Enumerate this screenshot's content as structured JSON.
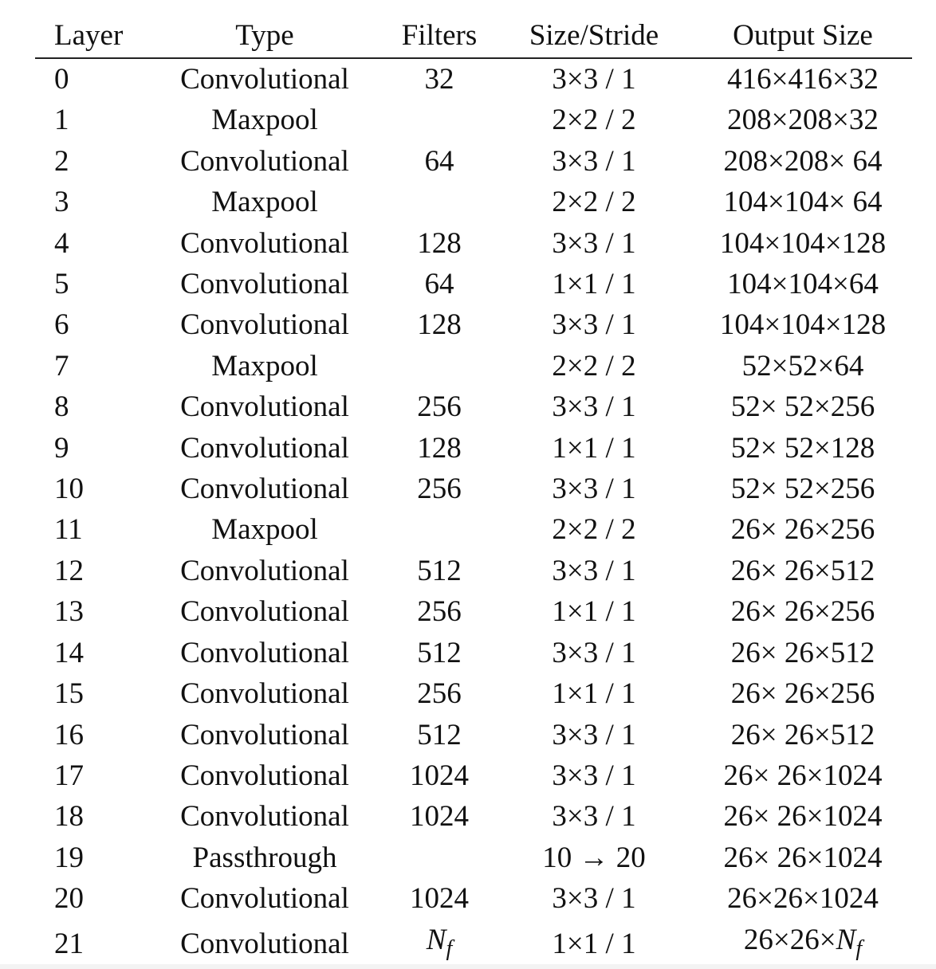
{
  "table": {
    "headers": {
      "layer": "Layer",
      "type": "Type",
      "filters": "Filters",
      "size_stride": "Size/Stride",
      "output_size": "Output Size"
    },
    "rows": [
      {
        "layer": "0",
        "type": "Convolutional",
        "filters": "32",
        "size_stride": "3×3 / 1",
        "output_size": "416×416×32"
      },
      {
        "layer": "1",
        "type": "Maxpool",
        "filters": "",
        "size_stride": "2×2 / 2",
        "output_size": "208×208×32"
      },
      {
        "layer": "2",
        "type": "Convolutional",
        "filters": "64",
        "size_stride": "3×3 / 1",
        "output_size": "208×208× 64"
      },
      {
        "layer": "3",
        "type": "Maxpool",
        "filters": "",
        "size_stride": "2×2 / 2",
        "output_size": "104×104× 64"
      },
      {
        "layer": "4",
        "type": "Convolutional",
        "filters": "128",
        "size_stride": "3×3 / 1",
        "output_size": "104×104×128"
      },
      {
        "layer": "5",
        "type": "Convolutional",
        "filters": "64",
        "size_stride": "1×1 / 1",
        "output_size": "104×104×64"
      },
      {
        "layer": "6",
        "type": "Convolutional",
        "filters": "128",
        "size_stride": "3×3 / 1",
        "output_size": "104×104×128"
      },
      {
        "layer": "7",
        "type": "Maxpool",
        "filters": "",
        "size_stride": "2×2 / 2",
        "output_size": "52×52×64"
      },
      {
        "layer": "8",
        "type": "Convolutional",
        "filters": "256",
        "size_stride": "3×3 / 1",
        "output_size": "52× 52×256"
      },
      {
        "layer": "9",
        "type": "Convolutional",
        "filters": "128",
        "size_stride": "1×1 / 1",
        "output_size": "52× 52×128"
      },
      {
        "layer": "10",
        "type": "Convolutional",
        "filters": "256",
        "size_stride": "3×3 / 1",
        "output_size": "52× 52×256"
      },
      {
        "layer": "11",
        "type": "Maxpool",
        "filters": "",
        "size_stride": "2×2 / 2",
        "output_size": "26× 26×256"
      },
      {
        "layer": "12",
        "type": "Convolutional",
        "filters": "512",
        "size_stride": "3×3 / 1",
        "output_size": "26× 26×512"
      },
      {
        "layer": "13",
        "type": "Convolutional",
        "filters": "256",
        "size_stride": "1×1 / 1",
        "output_size": "26× 26×256"
      },
      {
        "layer": "14",
        "type": "Convolutional",
        "filters": "512",
        "size_stride": "3×3 / 1",
        "output_size": "26× 26×512"
      },
      {
        "layer": "15",
        "type": "Convolutional",
        "filters": "256",
        "size_stride": "1×1 / 1",
        "output_size": "26× 26×256"
      },
      {
        "layer": "16",
        "type": "Convolutional",
        "filters": "512",
        "size_stride": "3×3 / 1",
        "output_size": "26× 26×512"
      },
      {
        "layer": "17",
        "type": "Convolutional",
        "filters": "1024",
        "size_stride": "3×3 / 1",
        "output_size": "26× 26×1024"
      },
      {
        "layer": "18",
        "type": "Convolutional",
        "filters": "1024",
        "size_stride": "3×3 / 1",
        "output_size": "26× 26×1024"
      },
      {
        "layer": "19",
        "type": "Passthrough",
        "filters": "",
        "size_stride": "10 → 20",
        "output_size": "26× 26×1024"
      },
      {
        "layer": "20",
        "type": "Convolutional",
        "filters": "1024",
        "size_stride": "3×3 / 1",
        "output_size": "26×26×1024"
      }
    ],
    "last_row": {
      "layer": "21",
      "type": "Convolutional",
      "filters_symbol": "N",
      "filters_subscript": "f",
      "size_stride": "1×1 / 1",
      "output_prefix": "26×26×",
      "output_symbol": "N",
      "output_subscript": "f"
    }
  }
}
